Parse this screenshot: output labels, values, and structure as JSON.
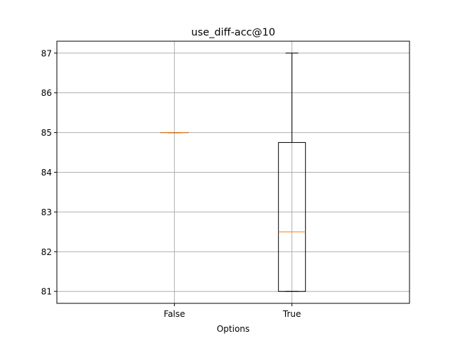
{
  "chart_data": {
    "type": "box",
    "title": "use_diff-acc@10",
    "xlabel": "Options",
    "ylabel": "",
    "categories": [
      "False",
      "True"
    ],
    "boxes": [
      {
        "category": "False",
        "whisker_low": 85.0,
        "q1": 85.0,
        "median": 85.0,
        "q3": 85.0,
        "whisker_high": 85.0
      },
      {
        "category": "True",
        "whisker_low": 81.0,
        "q1": 81.0,
        "median": 82.5,
        "q3": 84.75,
        "whisker_high": 87.0
      }
    ],
    "ylim": [
      80.7,
      87.3
    ],
    "yticks": [
      81,
      82,
      83,
      84,
      85,
      86,
      87
    ],
    "grid": true,
    "colors": {
      "box": "#000000",
      "median": "#ff7f0e",
      "grid": "#b0b0b0"
    }
  }
}
